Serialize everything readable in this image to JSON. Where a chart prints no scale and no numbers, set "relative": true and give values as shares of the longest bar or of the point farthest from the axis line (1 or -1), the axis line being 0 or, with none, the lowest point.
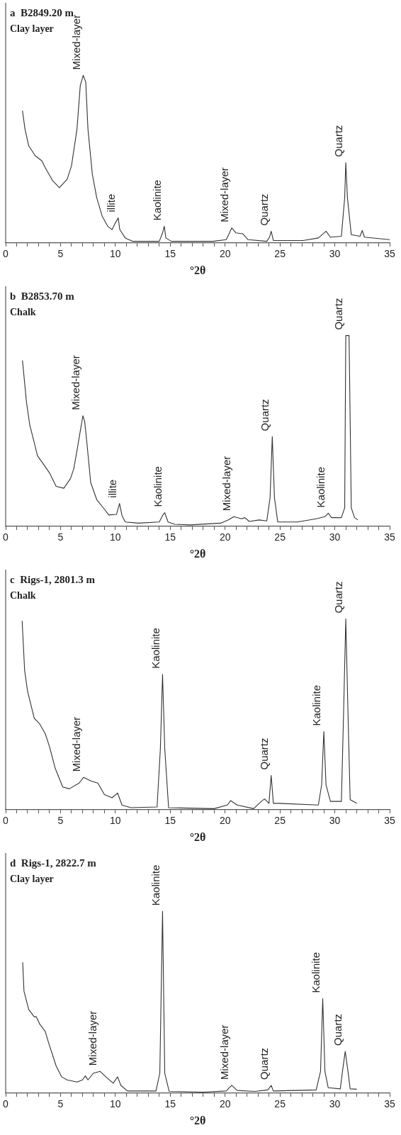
{
  "chart_data": [
    {
      "type": "line",
      "title": "a  B2849.20 m",
      "subtitle": "Clay layer",
      "xlabel": "°2θ",
      "relative": true,
      "color": "#333333",
      "xlim": [
        0,
        35
      ],
      "xticks": [
        0,
        {
          "value": 1,
          "label": null
        },
        {
          "value": 2,
          "label": null
        },
        {
          "value": 3,
          "label": null
        },
        {
          "value": 4,
          "label": null
        },
        5,
        {
          "value": 6,
          "label": null
        },
        {
          "value": 7,
          "label": null
        },
        {
          "value": 8,
          "label": null
        },
        {
          "value": 9,
          "label": null
        },
        10,
        {
          "value": 11,
          "label": null
        },
        {
          "value": 12,
          "label": null
        },
        {
          "value": 13,
          "label": null
        },
        {
          "value": 14,
          "label": null
        },
        15,
        {
          "value": 16,
          "label": null
        },
        {
          "value": 17,
          "label": null
        },
        {
          "value": 18,
          "label": null
        },
        {
          "value": 19,
          "label": null
        },
        20,
        {
          "value": 21,
          "label": null
        },
        {
          "value": 22,
          "label": null
        },
        {
          "value": 23,
          "label": null
        },
        {
          "value": 24,
          "label": null
        },
        25,
        {
          "value": 26,
          "label": null
        },
        {
          "value": 27,
          "label": null
        },
        {
          "value": 28,
          "label": null
        },
        {
          "value": 29,
          "label": null
        },
        30,
        {
          "value": 31,
          "label": null
        },
        {
          "value": 32,
          "label": null
        },
        {
          "value": 33,
          "label": null
        },
        {
          "value": 34,
          "label": null
        },
        35
      ],
      "x": [
        1.53,
        1.76,
        2.1,
        2.7,
        3.3,
        3.6,
        4.3,
        4.9,
        5.6,
        6.0,
        6.5,
        6.8,
        7.07,
        7.3,
        7.5,
        7.9,
        8.3,
        8.8,
        9.3,
        9.7,
        10.0,
        10.26,
        10.4,
        10.9,
        11.6,
        14.0,
        14.3,
        14.46,
        14.6,
        15.1,
        18.9,
        20.1,
        20.4,
        20.6,
        21.0,
        21.6,
        22.1,
        23.8,
        24.05,
        24.2,
        24.4,
        27.1,
        28.5,
        29.2,
        29.6,
        30.6,
        30.9,
        31.0,
        31.15,
        31.5,
        32.3,
        32.5,
        32.7,
        35.0
      ],
      "values": [
        0.79,
        0.68,
        0.58,
        0.52,
        0.49,
        0.45,
        0.37,
        0.33,
        0.38,
        0.46,
        0.68,
        0.94,
        1.0,
        0.96,
        0.68,
        0.41,
        0.27,
        0.16,
        0.1,
        0.08,
        0.12,
        0.15,
        0.08,
        0.03,
        0.01,
        0.01,
        0.06,
        0.1,
        0.03,
        0.01,
        0.01,
        0.02,
        0.06,
        0.09,
        0.06,
        0.055,
        0.02,
        0.01,
        0.035,
        0.07,
        0.015,
        0.015,
        0.03,
        0.07,
        0.035,
        0.04,
        0.27,
        0.48,
        0.27,
        0.05,
        0.04,
        0.075,
        0.035,
        0.02
      ],
      "annotations": [
        {
          "text": "Mixed-layer",
          "x": 7.07,
          "y": 1.0
        },
        {
          "text": "illite",
          "x": 10.26,
          "y": 0.15
        },
        {
          "text": "Kaolinite",
          "x": 14.46,
          "y": 0.1
        },
        {
          "text": "Mixed-layer",
          "x": 20.6,
          "y": 0.09
        },
        {
          "text": "Quartz",
          "x": 24.2,
          "y": 0.07
        },
        {
          "text": "Quartz",
          "x": 31.0,
          "y": 0.48
        }
      ]
    },
    {
      "type": "line",
      "title": "b  B2853.70 m",
      "subtitle": "Chalk",
      "xlabel": "°2θ",
      "relative": true,
      "color": "#333333",
      "xlim": [
        0,
        35
      ],
      "xticks": [
        0,
        {
          "value": 1,
          "label": null
        },
        {
          "value": 2,
          "label": null
        },
        {
          "value": 3,
          "label": null
        },
        {
          "value": 4,
          "label": null
        },
        5,
        {
          "value": 6,
          "label": null
        },
        {
          "value": 7,
          "label": null
        },
        {
          "value": 8,
          "label": null
        },
        {
          "value": 9,
          "label": null
        },
        10,
        {
          "value": 11,
          "label": null
        },
        {
          "value": 12,
          "label": null
        },
        {
          "value": 13,
          "label": null
        },
        {
          "value": 14,
          "label": null
        },
        15,
        {
          "value": 16,
          "label": null
        },
        {
          "value": 17,
          "label": null
        },
        {
          "value": 18,
          "label": null
        },
        {
          "value": 19,
          "label": null
        },
        20,
        {
          "value": 21,
          "label": null
        },
        {
          "value": 22,
          "label": null
        },
        {
          "value": 23,
          "label": null
        },
        {
          "value": 24,
          "label": null
        },
        25,
        {
          "value": 26,
          "label": null
        },
        {
          "value": 27,
          "label": null
        },
        {
          "value": 28,
          "label": null
        },
        {
          "value": 29,
          "label": null
        },
        30,
        {
          "value": 31,
          "label": null
        },
        {
          "value": 32,
          "label": null
        },
        {
          "value": 33,
          "label": null
        },
        {
          "value": 34,
          "label": null
        },
        35
      ],
      "x": [
        1.53,
        1.9,
        2.2,
        2.6,
        2.9,
        3.4,
        4.0,
        4.6,
        5.3,
        5.9,
        6.2,
        6.45,
        6.8,
        7.04,
        7.2,
        7.4,
        7.75,
        8.3,
        9.0,
        9.4,
        10.1,
        10.38,
        10.6,
        10.9,
        12.1,
        14.0,
        14.3,
        14.5,
        14.8,
        15.4,
        16.8,
        19.6,
        20.3,
        20.8,
        21.5,
        21.8,
        22.2,
        23.1,
        23.8,
        24.1,
        24.3,
        24.5,
        24.8,
        26.6,
        28.3,
        29.1,
        29.4,
        29.7,
        30.6,
        30.9,
        31.0,
        31.3,
        31.5,
        31.8,
        32.1
      ],
      "values": [
        0.87,
        0.65,
        0.53,
        0.44,
        0.37,
        0.33,
        0.28,
        0.21,
        0.2,
        0.25,
        0.3,
        0.38,
        0.5,
        0.58,
        0.55,
        0.44,
        0.23,
        0.14,
        0.09,
        0.06,
        0.063,
        0.12,
        0.057,
        0.023,
        0.017,
        0.023,
        0.057,
        0.072,
        0.023,
        0.011,
        0.008,
        0.017,
        0.034,
        0.051,
        0.04,
        0.046,
        0.026,
        0.034,
        0.029,
        0.15,
        0.47,
        0.15,
        0.023,
        0.023,
        0.04,
        0.051,
        0.069,
        0.046,
        0.046,
        0.097,
        1.0,
        1.0,
        0.097,
        0.046,
        0.034
      ],
      "annotations": [
        {
          "text": "Mixed-layer",
          "x": 7.04,
          "y": 0.58
        },
        {
          "text": "illite",
          "x": 10.38,
          "y": 0.12
        },
        {
          "text": "Kaolinite",
          "x": 14.5,
          "y": 0.072
        },
        {
          "text": "Mixed-layer",
          "x": 20.8,
          "y": 0.051
        },
        {
          "text": "Quartz",
          "x": 24.3,
          "y": 0.47
        },
        {
          "text": "Kaolinite",
          "x": 29.4,
          "y": 0.069
        },
        {
          "text": "Quartz",
          "x": 31.0,
          "y": 1.0
        }
      ]
    },
    {
      "type": "line",
      "title": "c  Rigs-1, 2801.3 m",
      "subtitle": "Chalk",
      "xlabel": "°2θ",
      "relative": true,
      "color": "#333333",
      "xlim": [
        0,
        35
      ],
      "xticks": [
        0,
        {
          "value": 1,
          "label": null
        },
        {
          "value": 2,
          "label": null
        },
        {
          "value": 3,
          "label": null
        },
        {
          "value": 4,
          "label": null
        },
        5,
        {
          "value": 6,
          "label": null
        },
        {
          "value": 7,
          "label": null
        },
        {
          "value": 8,
          "label": null
        },
        {
          "value": 9,
          "label": null
        },
        10,
        {
          "value": 11,
          "label": null
        },
        {
          "value": 12,
          "label": null
        },
        {
          "value": 13,
          "label": null
        },
        {
          "value": 14,
          "label": null
        },
        15,
        {
          "value": 16,
          "label": null
        },
        {
          "value": 17,
          "label": null
        },
        {
          "value": 18,
          "label": null
        },
        {
          "value": 19,
          "label": null
        },
        20,
        {
          "value": 21,
          "label": null
        },
        {
          "value": 22,
          "label": null
        },
        {
          "value": 23,
          "label": null
        },
        {
          "value": 24,
          "label": null
        },
        25,
        {
          "value": 26,
          "label": null
        },
        {
          "value": 27,
          "label": null
        },
        {
          "value": 28,
          "label": null
        },
        {
          "value": 29,
          "label": null
        },
        30,
        {
          "value": 31,
          "label": null
        },
        {
          "value": 32,
          "label": null
        },
        {
          "value": 33,
          "label": null
        },
        {
          "value": 34,
          "label": null
        },
        35
      ],
      "x": [
        1.5,
        1.73,
        2.0,
        2.6,
        3.1,
        3.6,
        4.0,
        4.5,
        5.2,
        5.8,
        6.7,
        7.1,
        7.8,
        8.4,
        9.0,
        9.7,
        10.2,
        10.6,
        11.4,
        13.8,
        14.1,
        14.3,
        14.5,
        14.85,
        19.0,
        20.2,
        20.5,
        21.1,
        22.6,
        23.3,
        23.6,
        24.0,
        24.2,
        24.4,
        24.9,
        28.5,
        28.8,
        29.0,
        29.2,
        29.6,
        30.6,
        30.8,
        31.0,
        31.2,
        31.4,
        32.0
      ],
      "values": [
        0.99,
        0.73,
        0.62,
        0.48,
        0.45,
        0.4,
        0.33,
        0.22,
        0.12,
        0.11,
        0.14,
        0.17,
        0.15,
        0.14,
        0.08,
        0.063,
        0.088,
        0.025,
        0.011,
        0.015,
        0.32,
        0.71,
        0.32,
        0.011,
        0.006,
        0.025,
        0.048,
        0.025,
        0.006,
        0.044,
        0.057,
        0.034,
        0.18,
        0.034,
        0.034,
        0.025,
        0.13,
        0.41,
        0.13,
        0.044,
        0.044,
        0.51,
        1.0,
        0.51,
        0.053,
        0.034
      ],
      "annotations": [
        {
          "text": "Mixed-layer",
          "x": 7.1,
          "y": 0.17
        },
        {
          "text": "Kaolinite",
          "x": 14.3,
          "y": 0.71
        },
        {
          "text": "Quartz",
          "x": 24.2,
          "y": 0.18
        },
        {
          "text": "Kaolinite",
          "x": 29.0,
          "y": 0.41
        },
        {
          "text": "Quartz",
          "x": 31.0,
          "y": 1.0
        }
      ]
    },
    {
      "type": "line",
      "title": "d  Rigs-1, 2822.7 m",
      "subtitle": "Clay layer",
      "xlabel": "°2θ",
      "relative": true,
      "color": "#333333",
      "xlim": [
        0,
        35
      ],
      "xticks": [
        0,
        {
          "value": 1,
          "label": null
        },
        {
          "value": 2,
          "label": null
        },
        {
          "value": 3,
          "label": null
        },
        {
          "value": 4,
          "label": null
        },
        5,
        {
          "value": 6,
          "label": null
        },
        {
          "value": 7,
          "label": null
        },
        {
          "value": 8,
          "label": null
        },
        {
          "value": 9,
          "label": null
        },
        10,
        {
          "value": 11,
          "label": null
        },
        {
          "value": 12,
          "label": null
        },
        {
          "value": 13,
          "label": null
        },
        {
          "value": 14,
          "label": null
        },
        15,
        {
          "value": 16,
          "label": null
        },
        {
          "value": 17,
          "label": null
        },
        {
          "value": 18,
          "label": null
        },
        {
          "value": 19,
          "label": null
        },
        20,
        {
          "value": 21,
          "label": null
        },
        {
          "value": 22,
          "label": null
        },
        {
          "value": 23,
          "label": null
        },
        {
          "value": 24,
          "label": null
        },
        25,
        {
          "value": 26,
          "label": null
        },
        {
          "value": 27,
          "label": null
        },
        {
          "value": 28,
          "label": null
        },
        {
          "value": 29,
          "label": null
        },
        30,
        {
          "value": 31,
          "label": null
        },
        {
          "value": 32,
          "label": null
        },
        {
          "value": 33,
          "label": null
        },
        {
          "value": 34,
          "label": null
        },
        35
      ],
      "x": [
        1.55,
        1.67,
        2.1,
        2.6,
        2.8,
        3.1,
        3.6,
        3.9,
        4.6,
        5.1,
        5.6,
        6.5,
        7.0,
        7.26,
        7.5,
        8.0,
        8.6,
        9.2,
        9.8,
        10.2,
        10.5,
        11.1,
        13.7,
        14.05,
        14.3,
        14.5,
        14.9,
        18.0,
        20.1,
        20.6,
        21.1,
        22.7,
        23.9,
        24.2,
        24.4,
        28.3,
        28.7,
        28.9,
        29.1,
        29.4,
        30.5,
        30.7,
        30.95,
        31.2,
        31.4,
        32.0
      ],
      "values": [
        0.72,
        0.56,
        0.46,
        0.42,
        0.42,
        0.38,
        0.34,
        0.28,
        0.15,
        0.09,
        0.073,
        0.061,
        0.073,
        0.095,
        0.073,
        0.11,
        0.12,
        0.086,
        0.055,
        0.09,
        0.043,
        0.012,
        0.012,
        0.11,
        1.0,
        0.11,
        0.01,
        0.006,
        0.012,
        0.043,
        0.015,
        0.01,
        0.018,
        0.043,
        0.012,
        0.018,
        0.12,
        0.52,
        0.12,
        0.03,
        0.024,
        0.12,
        0.23,
        0.12,
        0.024,
        0.022
      ],
      "annotations": [
        {
          "text": "Mixed-layer",
          "x": 8.6,
          "y": 0.12
        },
        {
          "text": "Kaolinite",
          "x": 14.3,
          "y": 1.0
        },
        {
          "text": "Mixed-layer",
          "x": 20.6,
          "y": 0.043
        },
        {
          "text": "Quartz",
          "x": 24.2,
          "y": 0.043
        },
        {
          "text": "Kaolinite",
          "x": 28.9,
          "y": 0.52
        },
        {
          "text": "Quartz",
          "x": 30.95,
          "y": 0.23
        }
      ]
    }
  ]
}
